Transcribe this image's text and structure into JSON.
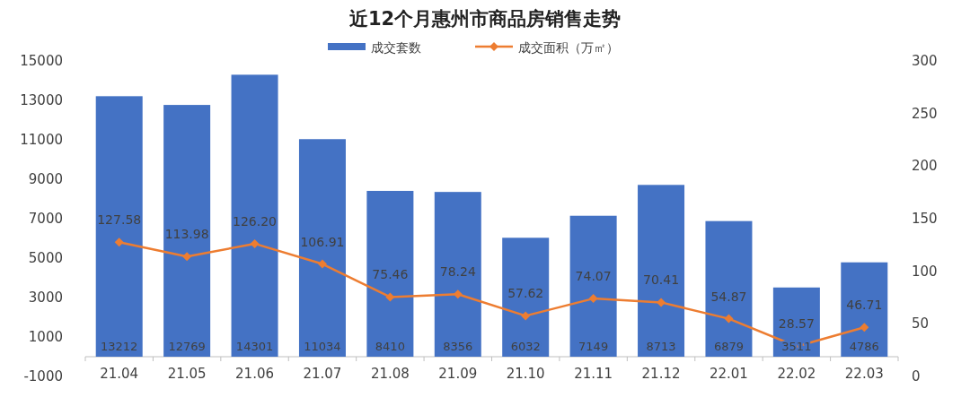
{
  "chart_data": {
    "type": "bar",
    "title": "近12个月惠州市商品房销售走势",
    "categories": [
      "21.04",
      "21.05",
      "21.06",
      "21.07",
      "21.08",
      "21.09",
      "21.10",
      "21.11",
      "21.12",
      "22.01",
      "22.02",
      "22.03"
    ],
    "series": [
      {
        "name": "成交套数",
        "color": "#4472c4",
        "values": [
          13212,
          12769,
          14301,
          11034,
          8410,
          8356,
          6032,
          7149,
          8713,
          6879,
          3511,
          4786
        ]
      },
      {
        "name": "成交面积（万㎡）",
        "type": "line",
        "axis": "y2",
        "color": "#ed7d31",
        "values": [
          127.58,
          113.98,
          126.2,
          106.91,
          75.46,
          78.24,
          57.62,
          74.07,
          70.41,
          54.87,
          28.57,
          46.71
        ],
        "value_labels": [
          "127.58",
          "113.98",
          "126.20",
          "106.91",
          "75.46",
          "78.24",
          "57.62",
          "74.07",
          "70.41",
          "54.87",
          "28.57",
          "46.71"
        ]
      }
    ],
    "ylim": [
      -1000,
      15000
    ],
    "yticks": [
      -1000,
      1000,
      3000,
      5000,
      7000,
      9000,
      11000,
      13000,
      15000
    ],
    "y2lim": [
      0,
      300
    ],
    "y2ticks": [
      0,
      50,
      100,
      150,
      200,
      250,
      300
    ],
    "data_labels": true,
    "legend": "top",
    "marker": "diamond",
    "grid": false
  }
}
